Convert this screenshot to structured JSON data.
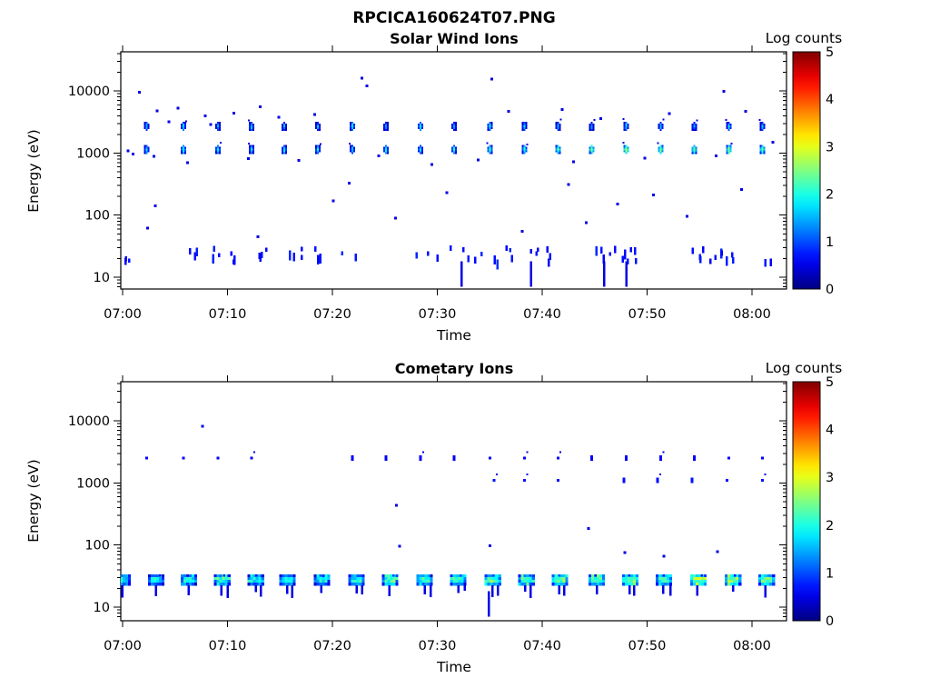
{
  "figure_title": "RPCICA160624T07.PNG",
  "chart_data": [
    {
      "type": "heatmap",
      "title": "Solar Wind Ions",
      "xlabel": "Time",
      "ylabel": "Energy (eV)",
      "time_start": "07:00",
      "x_ticks": [
        "07:00",
        "07:10",
        "07:20",
        "07:30",
        "07:40",
        "07:50",
        "08:00"
      ],
      "x_range_min": [
        0,
        63.3
      ],
      "y_scale": "log",
      "y_ticks": [
        "10",
        "100",
        "1000",
        "10000"
      ],
      "y_range_ev": [
        6.6,
        41000
      ],
      "colorbar": {
        "label": "Log counts",
        "ticks": [
          "0",
          "1",
          "2",
          "3",
          "4",
          "5"
        ],
        "range": [
          0,
          5
        ],
        "colormap": "jet"
      },
      "cycle_period_s": 192,
      "bands": [
        {
          "name": "ion-beam-2700eV",
          "energy_ev": 2700,
          "times_min": [
            2.3,
            5.8,
            9.1,
            12.3,
            15.4,
            18.6,
            21.9,
            25.1,
            28.4,
            31.6,
            35.0,
            38.3,
            41.5,
            44.7,
            48.0,
            51.3,
            54.5,
            57.8,
            61.0
          ],
          "log_counts": [
            1.6,
            1.8,
            1.5,
            1.7,
            1.6,
            1.5,
            1.8,
            1.6,
            1.9,
            1.6,
            1.8,
            1.7,
            1.6,
            1.5,
            1.9,
            1.7,
            1.6,
            1.8,
            1.7
          ]
        },
        {
          "name": "ion-beam-1150eV",
          "energy_ev": 1150,
          "times_min": [
            2.3,
            5.8,
            9.1,
            12.3,
            15.4,
            18.6,
            21.9,
            25.1,
            28.4,
            31.6,
            35.0,
            38.3,
            41.5,
            44.7,
            48.0,
            51.3,
            54.5,
            57.8,
            61.0
          ],
          "log_counts": [
            1.9,
            2.0,
            1.9,
            1.8,
            2.0,
            1.9,
            1.8,
            2.0,
            1.9,
            2.0,
            2.2,
            2.1,
            2.4,
            2.5,
            2.8,
            2.6,
            2.5,
            2.7,
            2.5
          ]
        }
      ],
      "low_energy_band": {
        "name": "low-energy-20-35eV",
        "energy_ev_range": [
          19,
          35
        ],
        "log_counts": 0.7,
        "times_min": [
          0.3,
          6.9,
          9.2,
          10.7,
          13.3,
          16.4,
          18.7,
          21.5,
          28.6,
          30.5,
          32.2,
          33.5,
          35.0,
          36.4,
          38.8,
          40.4,
          45.7,
          47.5,
          48.8,
          54.9,
          56.4,
          57.5,
          61.2
        ]
      },
      "vertical_lines_below_10ev_min": [
        32.3,
        38.9,
        45.9,
        48.0
      ],
      "scatter_log_counts": 0.5,
      "scatter_t_e": [
        [
          1.6,
          9500
        ],
        [
          3.3,
          4800
        ],
        [
          4.4,
          3200
        ],
        [
          5.3,
          5300
        ],
        [
          7.9,
          4000
        ],
        [
          8.4,
          2900
        ],
        [
          10.6,
          4400
        ],
        [
          13.1,
          5600
        ],
        [
          14.9,
          3800
        ],
        [
          18.3,
          4200
        ],
        [
          22.8,
          16000
        ],
        [
          23.3,
          12000
        ],
        [
          35.2,
          15500
        ],
        [
          36.8,
          4700
        ],
        [
          41.9,
          5000
        ],
        [
          45.6,
          3600
        ],
        [
          52.1,
          4300
        ],
        [
          57.3,
          9800
        ],
        [
          59.4,
          4700
        ],
        [
          0.5,
          1080
        ],
        [
          1.0,
          960
        ],
        [
          3.0,
          880
        ],
        [
          6.2,
          700
        ],
        [
          12.0,
          820
        ],
        [
          16.8,
          760
        ],
        [
          24.4,
          900
        ],
        [
          29.5,
          650
        ],
        [
          33.9,
          780
        ],
        [
          43.0,
          720
        ],
        [
          49.8,
          830
        ],
        [
          56.6,
          900
        ],
        [
          2.4,
          62
        ],
        [
          3.1,
          140
        ],
        [
          12.9,
          45
        ],
        [
          21.6,
          330
        ],
        [
          26.0,
          90
        ],
        [
          30.9,
          230
        ],
        [
          38.1,
          55
        ],
        [
          42.5,
          310
        ],
        [
          47.2,
          150
        ],
        [
          44.2,
          75
        ],
        [
          50.6,
          210
        ],
        [
          53.8,
          95
        ],
        [
          59.0,
          260
        ],
        [
          20.1,
          170
        ],
        [
          62.0,
          1500
        ]
      ]
    },
    {
      "type": "heatmap",
      "title": "Cometary Ions",
      "xlabel": "Time",
      "ylabel": "Energy (eV)",
      "time_start": "07:00",
      "x_ticks": [
        "07:00",
        "07:10",
        "07:20",
        "07:30",
        "07:40",
        "07:50",
        "08:00"
      ],
      "x_range_min": [
        0,
        63.3
      ],
      "y_scale": "log",
      "y_ticks": [
        "10",
        "100",
        "1000",
        "10000"
      ],
      "y_range_ev": [
        6.6,
        41000
      ],
      "colorbar": {
        "label": "Log counts",
        "ticks": [
          "0",
          "1",
          "2",
          "3",
          "4",
          "5"
        ],
        "range": [
          0,
          5
        ],
        "colormap": "jet"
      },
      "cycle_period_s": 192,
      "dot_bands": [
        {
          "name": "spin-dots-2500eV",
          "energy_ev": 2500,
          "log_counts": 0.6,
          "times_min": [
            2.3,
            5.8,
            9.1,
            12.3,
            21.9,
            25.1,
            28.4,
            31.6,
            35.0,
            38.3,
            41.5,
            44.7,
            48.0,
            51.3,
            54.5,
            57.8,
            61.0
          ]
        },
        {
          "name": "spin-dots-1100eV",
          "energy_ev": 1100,
          "log_counts": 0.7,
          "times_min": [
            35.4,
            38.3,
            41.5,
            47.8,
            51.0,
            54.3,
            57.6,
            61.0
          ]
        }
      ],
      "blob_band": {
        "name": "cometary-ions-25eV",
        "energy_ev_center": 26,
        "energy_ev_range": [
          19,
          36
        ],
        "legs_down_to_ev": 13,
        "times_min": [
          0.0,
          3.2,
          6.3,
          9.5,
          12.7,
          15.7,
          19.0,
          22.3,
          25.5,
          28.8,
          32.0,
          35.3,
          38.5,
          41.7,
          45.2,
          48.4,
          51.6,
          54.9,
          58.2,
          61.4
        ],
        "log_counts": [
          1.9,
          1.8,
          2.0,
          2.1,
          1.9,
          2.0,
          1.8,
          2.0,
          2.2,
          2.1,
          2.2,
          2.3,
          2.1,
          2.4,
          2.3,
          2.5,
          2.2,
          2.6,
          2.4,
          2.3
        ]
      },
      "vertical_lines_below_10ev_min": [
        34.9
      ],
      "scatter_log_counts": 0.5,
      "scatter_t_e": [
        [
          7.6,
          8200
        ],
        [
          26.4,
          95
        ],
        [
          35.0,
          97
        ],
        [
          44.4,
          185
        ],
        [
          47.9,
          76
        ],
        [
          51.6,
          66
        ],
        [
          56.7,
          78
        ],
        [
          26.1,
          440
        ]
      ]
    }
  ]
}
